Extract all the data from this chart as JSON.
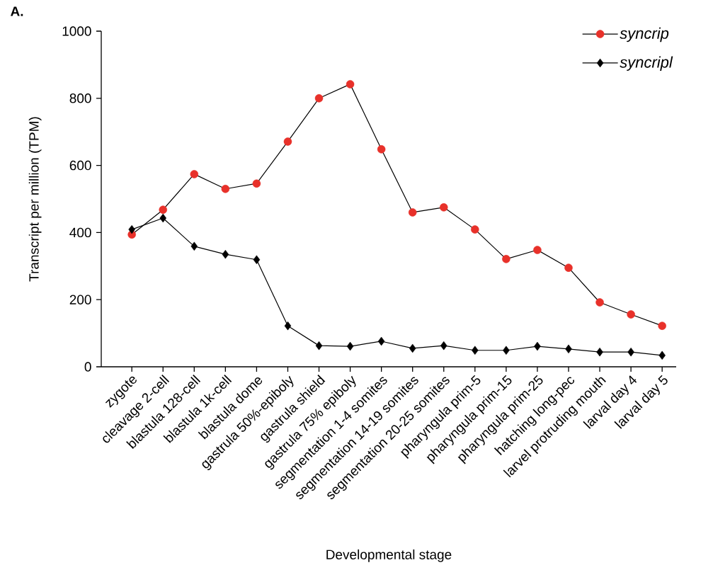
{
  "chart_data": {
    "type": "line",
    "xlabel": "Developmental stage",
    "ylabel": "Transcript per million (TPM)",
    "annotations": [
      "A."
    ],
    "categories": [
      "zygote",
      "cleavage 2-cell",
      "blastula 128-cell",
      "blastula 1k-cell",
      "blastula dome",
      "gastrula 50%-epiboly",
      "gastrula shield",
      "gastrula 75% epiboly",
      "segmentation 1-4 somites",
      "segmentation 14-19 somites",
      "segmentation 20-25 somites",
      "pharyngula prim-5",
      "pharyngula prim-15",
      "pharyngula prim-25",
      "hatching long-pec",
      "larvel protruding mouth",
      "larval day 4",
      "larval day 5"
    ],
    "series": [
      {
        "name": "syncrip",
        "color": "#e8312a",
        "marker": "circle",
        "values": [
          394,
          468,
          574,
          530,
          546,
          671,
          800,
          842,
          648,
          460,
          475,
          409,
          321,
          348,
          295,
          192,
          156,
          122
        ]
      },
      {
        "name": "syncripl",
        "color": "#000000",
        "marker": "diamond",
        "values": [
          409,
          443,
          359,
          335,
          319,
          122,
          63,
          61,
          76,
          55,
          63,
          49,
          49,
          61,
          53,
          44,
          44,
          34
        ]
      }
    ],
    "ylim": [
      0,
      1000
    ],
    "yticks": [
      0,
      200,
      400,
      600,
      800,
      1000
    ],
    "grid": false,
    "legend": "top right",
    "line_style": "solid"
  }
}
